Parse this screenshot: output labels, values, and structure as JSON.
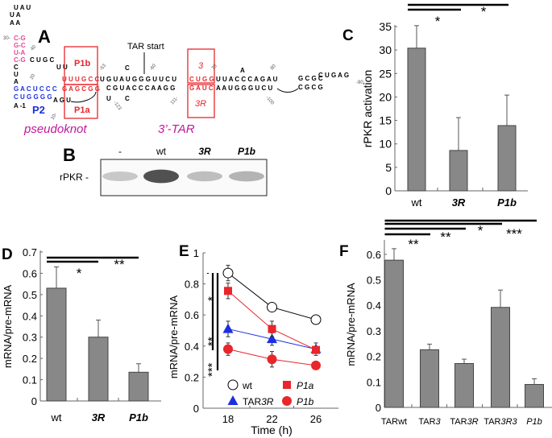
{
  "panels": {
    "A": "A",
    "B": "B",
    "C": "C",
    "D": "D",
    "E": "E",
    "F": "F"
  },
  "diagram": {
    "hairpin_loop": [
      "U A U",
      "U A",
      "A A"
    ],
    "pink_stem": [
      "C-G",
      "G-C",
      "U-A",
      "C-G"
    ],
    "left_column": [
      "C",
      "U",
      "A"
    ],
    "top_strand": "C U G C",
    "top_strand2": "U U",
    "p1b_top": "U U U G C C",
    "p1a_bottom": "G A G C G G",
    "p2_top": "G A C U C C C",
    "p2_bottom": "C U G G G G",
    "a1": "A -1",
    "agu": "A G U",
    "mid_top": "U G U A  U G G G U  U C U",
    "mid_bottom": "C G U   A C C C A   A G G",
    "box3_top": "C U G G",
    "box3_bottom": "G A U C",
    "right_top": "U U A C   C C A G A U",
    "right_bottom": "A A U G   G G U C U",
    "far_right_top": "G C G C",
    "far_right_bottom": "C G C G",
    "far_loop": "C U  G  A G",
    "num_30": "30-",
    "num_40": "40",
    "num_20": "20",
    "num_10": "10-",
    "num_53": "-53",
    "num_60": "-60",
    "num_70": "70",
    "num_80": "80",
    "num_90": "-90",
    "num_100": "-100",
    "num_111": "111-",
    "num_123": "-123",
    "u123": "U",
    "c_bulge": "C",
    "c_bulge2": "C",
    "a_bulge": "A",
    "box_p1b": "P1b",
    "box_p1a": "P1a",
    "box_3": "3",
    "box_3r": "3R",
    "p2_label": "P2",
    "tar_start": "TAR start",
    "pseudoknot_label": "pseudoknot",
    "tar3_label": "3’-TAR",
    "colors": {
      "red": "#e8262b",
      "blue": "#1c2fe0",
      "pink": "#e2489a",
      "magenta": "#c0189e"
    }
  },
  "gel": {
    "lanes": [
      "-",
      "wt",
      "3R",
      "P1b"
    ],
    "row_label": "rPKR -",
    "band_intensity": [
      0.25,
      0.85,
      0.3,
      0.35
    ]
  },
  "chart_data": [
    {
      "panel": "C",
      "type": "bar",
      "categories": [
        "wt",
        "3R",
        "P1b"
      ],
      "values": [
        30.4,
        8.6,
        13.9
      ],
      "errors": [
        4.8,
        7.0,
        6.5
      ],
      "ylabel": "rPKR activation",
      "ylim": [
        0,
        35
      ],
      "yticks": [
        "0",
        "5",
        "10",
        "15",
        "20",
        "25",
        "30",
        "35"
      ],
      "significance": [
        {
          "pair": [
            "wt",
            "3R"
          ],
          "label": "*"
        },
        {
          "pair": [
            "wt",
            "P1b"
          ],
          "label": "*"
        }
      ]
    },
    {
      "panel": "D",
      "type": "bar",
      "categories": [
        "wt",
        "3R",
        "P1b"
      ],
      "values": [
        0.53,
        0.3,
        0.135
      ],
      "errors": [
        0.1,
        0.08,
        0.04
      ],
      "ylabel": "mRNA/pre-mRNA",
      "ylim": [
        0,
        0.7
      ],
      "yticks": [
        "0",
        "0.1",
        "0.2",
        "0.3",
        "0.4",
        "0.5",
        "0.6",
        "0.7"
      ],
      "significance": [
        {
          "pair": [
            "wt",
            "3R"
          ],
          "label": "*"
        },
        {
          "pair": [
            "wt",
            "P1b"
          ],
          "label": "**"
        }
      ]
    },
    {
      "panel": "E",
      "type": "line",
      "x": [
        18,
        22,
        26
      ],
      "xlabel": "Time (h)",
      "ylabel": "mRNA/pre-mRNA",
      "ylim": [
        0,
        1
      ],
      "yticks": [
        "0",
        "0.2",
        "0.4",
        "0.6",
        "0.8",
        "1"
      ],
      "xticks": [
        "18",
        "22",
        "26"
      ],
      "series": [
        {
          "name": "wt",
          "values": [
            0.87,
            0.65,
            0.57
          ],
          "errors": [
            0.05,
            0.02,
            0.01
          ],
          "color": "#000000",
          "marker": "open-circle"
        },
        {
          "name": "P1a",
          "values": [
            0.755,
            0.51,
            0.375
          ],
          "errors": [
            0.05,
            0.05,
            0.02
          ],
          "color": "#e8262b",
          "marker": "square"
        },
        {
          "name": "TAR3R",
          "values": [
            0.51,
            0.445,
            0.38
          ],
          "errors": [
            0.05,
            0.04,
            0.04
          ],
          "color": "#1c2fe0",
          "marker": "triangle"
        },
        {
          "name": "P1b",
          "values": [
            0.38,
            0.315,
            0.275
          ],
          "errors": [
            0.04,
            0.05,
            0.02
          ],
          "color": "#e8262b",
          "marker": "circle"
        }
      ],
      "significance": [
        "*",
        "**",
        "***"
      ]
    },
    {
      "panel": "F",
      "type": "bar",
      "categories": [
        "TARwt",
        "TAR3",
        "TAR3R",
        "TAR3R3",
        "P1b"
      ],
      "values": [
        0.577,
        0.226,
        0.172,
        0.392,
        0.09
      ],
      "errors": [
        0.045,
        0.022,
        0.017,
        0.068,
        0.022
      ],
      "ylabel": "mRNA/pre-mRNA",
      "ylim": [
        0,
        0.65
      ],
      "yticks": [
        "0",
        "0.1",
        "0.2",
        "0.3",
        "0.4",
        "0.5",
        "0.6"
      ],
      "significance": [
        {
          "pair": [
            "TARwt",
            "TAR3"
          ],
          "label": "**"
        },
        {
          "pair": [
            "TARwt",
            "TAR3R"
          ],
          "label": "**"
        },
        {
          "pair": [
            "TARwt",
            "TAR3R3"
          ],
          "label": "*"
        },
        {
          "pair": [
            "TARwt",
            "P1b"
          ],
          "label": "***"
        }
      ]
    }
  ]
}
